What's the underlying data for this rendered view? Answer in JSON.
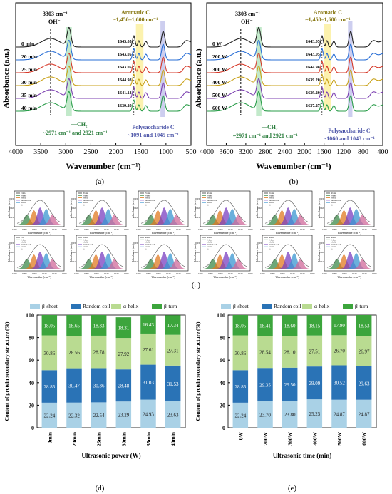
{
  "panel_a": {
    "letter": "(a)",
    "ylabel": "Absorbance (a.u.)",
    "xlabel": "Wavenumber (cm⁻¹)",
    "xticks": [
      "4000",
      "3500",
      "3000",
      "2500",
      "2000",
      "1500",
      "1000",
      "500"
    ],
    "annot_oh_value": "3303 cm⁻¹",
    "annot_oh": "OH⁻",
    "annot_arom_title": "Aromatic C",
    "annot_arom_range": "~1,450–1,600 cm⁻¹",
    "annot_ch2": "—CH₂",
    "annot_ch2_range": "~2971 cm⁻¹ and 2921 cm⁻¹",
    "annot_poly_title": "Polysaccharide C",
    "annot_poly_range": "~1091 and 1045 cm⁻¹",
    "curve_labels": [
      "0 min",
      "20 min",
      "25 min",
      "30 min",
      "35 min",
      "40 min"
    ],
    "peak_labels": [
      "1643.05",
      "1643.05",
      "1643.05",
      "1644.98",
      "1641.13",
      "1639.20"
    ]
  },
  "panel_b": {
    "letter": "(b)",
    "ylabel": "Absorbance (a.u.)",
    "xlabel": "Wavenumber (cm⁻¹)",
    "xticks": [
      "4000",
      "3600",
      "3200",
      "2800",
      "2400",
      "2000",
      "1600",
      "1200",
      "800",
      "400"
    ],
    "annot_oh_value": "3303 cm⁻¹",
    "annot_oh": "OH⁻",
    "annot_arom_title": "Aromatic C",
    "annot_arom_range": "~1,450–1,600 cm⁻¹",
    "annot_ch2": "—CH₂",
    "annot_ch2_range": "~2971 cm⁻¹ and 2921 cm⁻¹",
    "annot_poly_title": "Polysaccharide C",
    "annot_poly_range": "~1060 and 1043 cm⁻¹",
    "curve_labels": [
      "0 W",
      "200 W",
      "300 W",
      "400 W",
      "500 W",
      "600 W"
    ],
    "peak_labels": [
      "1643.05",
      "1643.05",
      "1644.98",
      "1639.20",
      "1639.20",
      "1637.27"
    ]
  },
  "panel_c": {
    "letter": "(c)",
    "mini_xlabel": "Wavenumber (cm⁻¹)",
    "mini_ylabel": "Absorbance (a.u.)",
    "mini_xticks": [
      "1700",
      "1680",
      "1660",
      "1640",
      "1620",
      "1600"
    ],
    "mini_yticks": [
      "0.03",
      "0.02",
      "0.01"
    ],
    "mini_legend": [
      "0 min",
      "β-sheet",
      "α-helix",
      "Random coil",
      "β-turn",
      "fit"
    ],
    "mini_titles_row1": [
      "0 min",
      "20 min",
      "25 min",
      "30 min",
      "35 min",
      "40 min"
    ],
    "mini_titles_row2": [
      "0 W",
      "200 W",
      "300 W",
      "400 W",
      "500 W",
      "600 W"
    ]
  },
  "panel_d": {
    "letter": "(d)"
  },
  "panel_e": {
    "letter": "(e)"
  },
  "colors": {
    "beta_sheet": "#a9d1e6",
    "random_coil": "#2a73b6",
    "alpha_helix": "#b9db91",
    "beta_turn": "#3ca53c"
  },
  "chart_data": [
    {
      "type": "bar",
      "stacked": true,
      "categories": [
        "0min",
        "20min",
        "25min",
        "30min",
        "35min",
        "40min"
      ],
      "series": [
        {
          "name": "β-sheet",
          "values": [
            22.24,
            22.32,
            22.54,
            23.29,
            24.93,
            23.63
          ]
        },
        {
          "name": "Random coil",
          "values": [
            28.85,
            30.47,
            30.36,
            28.48,
            31.03,
            31.53
          ]
        },
        {
          "name": "α-helix",
          "values": [
            30.86,
            28.56,
            28.78,
            27.92,
            27.61,
            27.31
          ]
        },
        {
          "name": "β-turn",
          "values": [
            18.05,
            18.65,
            18.33,
            18.31,
            16.43,
            17.34
          ]
        }
      ],
      "xlabel": "Ultrasonic power (W)",
      "ylabel": "Content of protein secondary structure (%)",
      "ylim": [
        0,
        100
      ],
      "yticks": [
        "0",
        "20",
        "40",
        "60",
        "80",
        "100"
      ],
      "legend": "top"
    },
    {
      "type": "bar",
      "stacked": true,
      "categories": [
        "0W",
        "200W",
        "300W",
        "400W",
        "500W",
        "600W"
      ],
      "series": [
        {
          "name": "β-sheet",
          "values": [
            22.24,
            23.7,
            23.8,
            25.25,
            24.87,
            24.87
          ]
        },
        {
          "name": "Random coil",
          "values": [
            28.85,
            29.35,
            29.5,
            29.09,
            30.52,
            29.63
          ]
        },
        {
          "name": "α-helix",
          "values": [
            30.86,
            28.54,
            28.1,
            27.51,
            26.7,
            26.97
          ]
        },
        {
          "name": "β-turn",
          "values": [
            18.05,
            18.41,
            18.6,
            18.15,
            17.9,
            18.53
          ]
        }
      ],
      "xlabel": "Ultrasonic time (min)",
      "ylabel": "Content of protein secondary structure (%)",
      "ylim": [
        0,
        100
      ],
      "yticks": [
        "0",
        "20",
        "40",
        "60",
        "80",
        "100"
      ],
      "legend": "top"
    }
  ]
}
